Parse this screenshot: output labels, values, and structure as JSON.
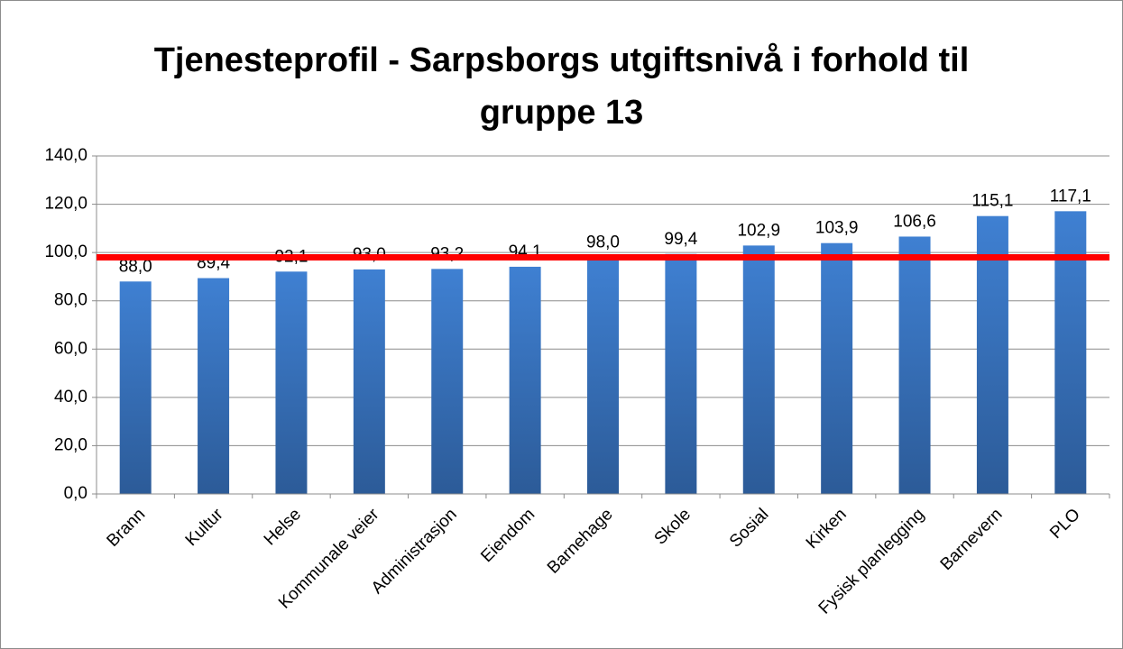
{
  "chart_data": {
    "type": "bar",
    "title": "Tjenesteprofil - Sarpsborgs utgiftsnivå i forhold til gruppe 13",
    "categories": [
      "Brann",
      "Kultur",
      "Helse",
      "Kommunale veier",
      "Administrasjon",
      "Eiendom",
      "Barnehage",
      "Skole",
      "Sosial",
      "Kirken",
      "Fysisk planlegging",
      "Barnevern",
      "PLO"
    ],
    "values": [
      88.0,
      89.4,
      92.1,
      93.0,
      93.2,
      94.1,
      98.0,
      99.4,
      102.9,
      103.9,
      106.6,
      115.1,
      117.1
    ],
    "value_labels": [
      "88,0",
      "89,4",
      "92,1",
      "93,0",
      "93,2",
      "94,1",
      "98,0",
      "99,4",
      "102,9",
      "103,9",
      "106,6",
      "115,1",
      "117,1"
    ],
    "color": "#3a76c4",
    "ylim": [
      0,
      140
    ],
    "yticks": [
      {
        "value": 0,
        "label": "0,0"
      },
      {
        "value": 20,
        "label": "20,0"
      },
      {
        "value": 40,
        "label": "40,0"
      },
      {
        "value": 60,
        "label": "60,0"
      },
      {
        "value": 80,
        "label": "80,0"
      },
      {
        "value": 100,
        "label": "100,0"
      },
      {
        "value": 120,
        "label": "120,0"
      },
      {
        "value": 140,
        "label": "140,0"
      }
    ],
    "grid": true,
    "reference_line": {
      "value": 98,
      "color": "#ff0000"
    }
  }
}
